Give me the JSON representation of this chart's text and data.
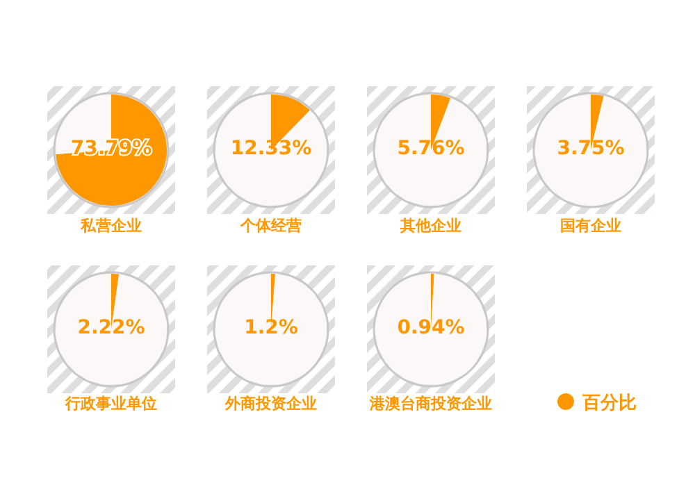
{
  "chart_data": [
    {
      "type": "pie",
      "title": "私营企业",
      "categories": [
        null,
        null
      ],
      "values": [
        73.79,
        26.21
      ],
      "colors": [
        "#ff9800",
        "#fcf8f7"
      ],
      "value_labels": [
        "73.79%",
        null
      ]
    },
    {
      "type": "pie",
      "title": "个体经营",
      "categories": [
        null,
        null
      ],
      "values": [
        12.33,
        87.67
      ],
      "colors": [
        "#ff9800",
        "#fcf8f7"
      ],
      "value_labels": [
        "12.33%",
        null
      ]
    },
    {
      "type": "pie",
      "title": "其他企业",
      "categories": [
        null,
        null
      ],
      "values": [
        5.76,
        94.24
      ],
      "colors": [
        "#ff9800",
        "#fcf8f7"
      ],
      "value_labels": [
        "5.76%",
        null
      ]
    },
    {
      "type": "pie",
      "title": "国有企业",
      "categories": [
        null,
        null
      ],
      "values": [
        3.75,
        96.25
      ],
      "colors": [
        "#ff9800",
        "#fcf8f7"
      ],
      "value_labels": [
        "3.75%",
        null
      ]
    },
    {
      "type": "pie",
      "title": "行政事业单位",
      "categories": [
        null,
        null
      ],
      "values": [
        2.22,
        97.78
      ],
      "colors": [
        "#ff9800",
        "#fcf8f7"
      ],
      "value_labels": [
        "2.22%",
        null
      ]
    },
    {
      "type": "pie",
      "title": "外商投资企业",
      "categories": [
        null,
        null
      ],
      "values": [
        1.2,
        98.8
      ],
      "colors": [
        "#ff9800",
        "#fcf8f7"
      ],
      "value_labels": [
        "1.2%",
        null
      ]
    },
    {
      "type": "pie",
      "title": "港澳台商投资企业",
      "categories": [
        "百分比",
        null
      ],
      "values": [
        0.94,
        99.06
      ],
      "colors": [
        "#ff9800",
        "#fcf8f7"
      ],
      "value_labels": [
        "0.94%",
        null
      ],
      "legend": "right"
    }
  ]
}
